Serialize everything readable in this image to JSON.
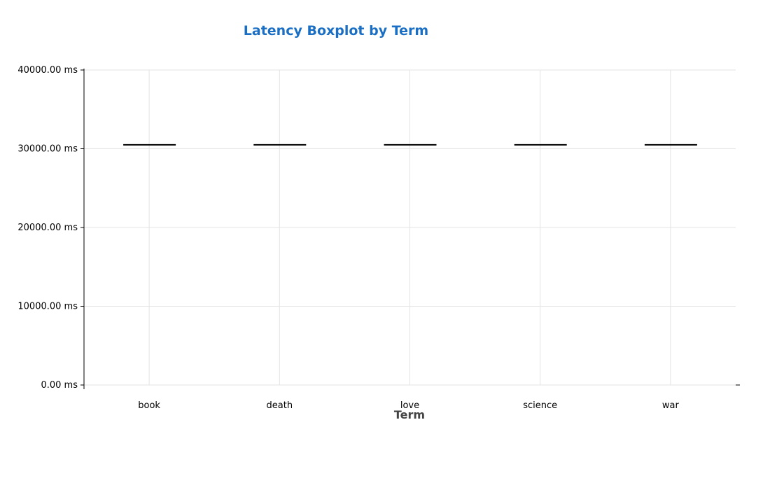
{
  "chart_data": {
    "type": "boxplot",
    "title": "Latency Boxplot by Term",
    "xlabel": "Term",
    "ylabel": "",
    "categories": [
      "book",
      "death",
      "love",
      "science",
      "war"
    ],
    "values": [
      30500,
      30500,
      30500,
      30500,
      30500
    ],
    "ylim": [
      0,
      40000
    ],
    "yticks": [
      0,
      10000,
      20000,
      30000,
      40000
    ],
    "ytick_labels": [
      "0.00 ms",
      "10000.00 ms",
      "20000.00 ms",
      "30000.00 ms",
      "40000.00 ms"
    ],
    "grid": true,
    "legend": "none",
    "colors": {
      "title": "#1a6fc4",
      "grid": "#e3e3e3",
      "median": "#000000"
    }
  }
}
